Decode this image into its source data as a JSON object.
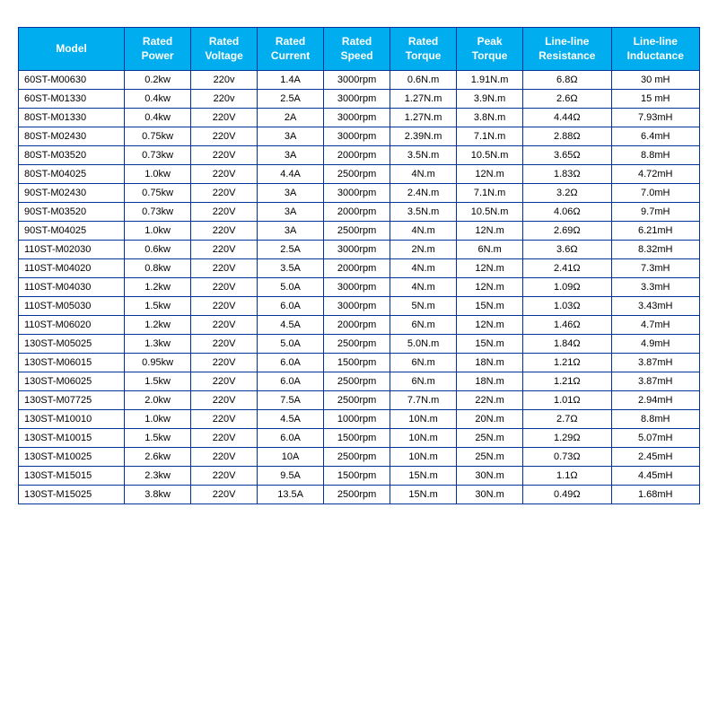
{
  "table": {
    "header_bg": "#00aeef",
    "header_fg": "#ffffff",
    "border_color": "#003399",
    "columns": [
      "Model",
      "Rated Power",
      "Rated Voltage",
      "Rated Current",
      "Rated Speed",
      "Rated Torque",
      "Peak Torque",
      "Line-line Resistance",
      "Line-line Inductance"
    ],
    "rows": [
      [
        "60ST-M00630",
        "0.2kw",
        "220v",
        "1.4A",
        "3000rpm",
        "0.6N.m",
        "1.91N.m",
        "6.8Ω",
        "30 mH"
      ],
      [
        "60ST-M01330",
        "0.4kw",
        "220v",
        "2.5A",
        "3000rpm",
        "1.27N.m",
        "3.9N.m",
        "2.6Ω",
        "15 mH"
      ],
      [
        "80ST-M01330",
        "0.4kw",
        "220V",
        "2A",
        "3000rpm",
        "1.27N.m",
        "3.8N.m",
        "4.44Ω",
        "7.93mH"
      ],
      [
        "80ST-M02430",
        "0.75kw",
        "220V",
        "3A",
        "3000rpm",
        "2.39N.m",
        "7.1N.m",
        "2.88Ω",
        "6.4mH"
      ],
      [
        "80ST-M03520",
        "0.73kw",
        "220V",
        "3A",
        "2000rpm",
        "3.5N.m",
        "10.5N.m",
        "3.65Ω",
        "8.8mH"
      ],
      [
        "80ST-M04025",
        "1.0kw",
        "220V",
        "4.4A",
        "2500rpm",
        "4N.m",
        "12N.m",
        "1.83Ω",
        "4.72mH"
      ],
      [
        "90ST-M02430",
        "0.75kw",
        "220V",
        "3A",
        "3000rpm",
        "2.4N.m",
        "7.1N.m",
        "3.2Ω",
        "7.0mH"
      ],
      [
        "90ST-M03520",
        "0.73kw",
        "220V",
        "3A",
        "2000rpm",
        "3.5N.m",
        "10.5N.m",
        "4.06Ω",
        "9.7mH"
      ],
      [
        "90ST-M04025",
        "1.0kw",
        "220V",
        "3A",
        "2500rpm",
        "4N.m",
        "12N.m",
        "2.69Ω",
        "6.21mH"
      ],
      [
        "110ST-M02030",
        "0.6kw",
        "220V",
        "2.5A",
        "3000rpm",
        "2N.m",
        "6N.m",
        "3.6Ω",
        "8.32mH"
      ],
      [
        "110ST-M04020",
        "0.8kw",
        "220V",
        "3.5A",
        "2000rpm",
        "4N.m",
        "12N.m",
        "2.41Ω",
        "7.3mH"
      ],
      [
        "110ST-M04030",
        "1.2kw",
        "220V",
        "5.0A",
        "3000rpm",
        "4N.m",
        "12N.m",
        "1.09Ω",
        "3.3mH"
      ],
      [
        "110ST-M05030",
        "1.5kw",
        "220V",
        "6.0A",
        "3000rpm",
        "5N.m",
        "15N.m",
        "1.03Ω",
        "3.43mH"
      ],
      [
        "110ST-M06020",
        "1.2kw",
        "220V",
        "4.5A",
        "2000rpm",
        "6N.m",
        "12N.m",
        "1.46Ω",
        "4.7mH"
      ],
      [
        "130ST-M05025",
        "1.3kw",
        "220V",
        "5.0A",
        "2500rpm",
        "5.0N.m",
        "15N.m",
        "1.84Ω",
        "4.9mH"
      ],
      [
        "130ST-M06015",
        "0.95kw",
        "220V",
        "6.0A",
        "1500rpm",
        "6N.m",
        "18N.m",
        "1.21Ω",
        "3.87mH"
      ],
      [
        "130ST-M06025",
        "1.5kw",
        "220V",
        "6.0A",
        "2500rpm",
        "6N.m",
        "18N.m",
        "1.21Ω",
        "3.87mH"
      ],
      [
        "130ST-M07725",
        "2.0kw",
        "220V",
        "7.5A",
        "2500rpm",
        "7.7N.m",
        "22N.m",
        "1.01Ω",
        "2.94mH"
      ],
      [
        "130ST-M10010",
        "1.0kw",
        "220V",
        "4.5A",
        "1000rpm",
        "10N.m",
        "20N.m",
        "2.7Ω",
        "8.8mH"
      ],
      [
        "130ST-M10015",
        "1.5kw",
        "220V",
        "6.0A",
        "1500rpm",
        "10N.m",
        "25N.m",
        "1.29Ω",
        "5.07mH"
      ],
      [
        "130ST-M10025",
        "2.6kw",
        "220V",
        "10A",
        "2500rpm",
        "10N.m",
        "25N.m",
        "0.73Ω",
        "2.45mH"
      ],
      [
        "130ST-M15015",
        "2.3kw",
        "220V",
        "9.5A",
        "1500rpm",
        "15N.m",
        "30N.m",
        "1.1Ω",
        "4.45mH"
      ],
      [
        "130ST-M15025",
        "3.8kw",
        "220V",
        "13.5A",
        "2500rpm",
        "15N.m",
        "30N.m",
        "0.49Ω",
        "1.68mH"
      ]
    ]
  }
}
